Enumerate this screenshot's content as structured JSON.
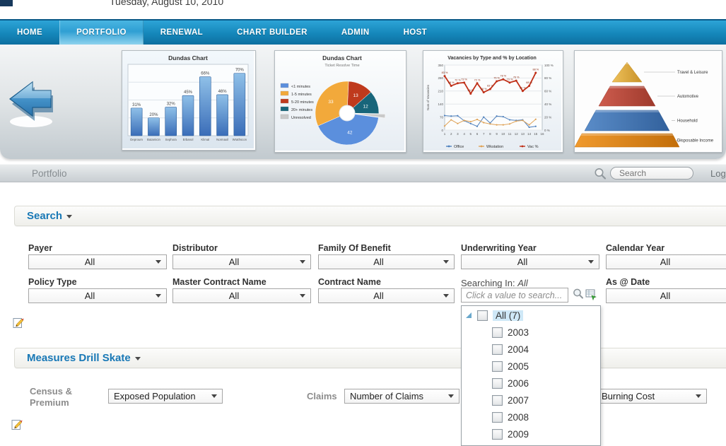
{
  "window": {
    "date": "Tuesday, August 10, 2010",
    "logout": "Log"
  },
  "nav": {
    "items": [
      "HOME",
      "PORTFOLIO",
      "RENEWAL",
      "CHART BUILDER",
      "ADMIN",
      "HOST"
    ],
    "active": "PORTFOLIO"
  },
  "breadcrumb": {
    "title": "Portfolio"
  },
  "toolbar_search": {
    "placeholder": "Search"
  },
  "search_section": {
    "title": "Search"
  },
  "filters": {
    "row1": [
      {
        "label": "Payer",
        "value": "All"
      },
      {
        "label": "Distributor",
        "value": "All"
      },
      {
        "label": "Family Of Benefit",
        "value": "All"
      },
      {
        "label": "Underwriting Year",
        "value": "All"
      },
      {
        "label": "Calendar Year",
        "value": "All"
      }
    ],
    "row2": [
      {
        "label": "Policy Type",
        "value": "All"
      },
      {
        "label": "Master Contract Name",
        "value": "All"
      },
      {
        "label": "Contract Name",
        "value": "All"
      }
    ],
    "as_at": {
      "label": "As @ Date",
      "value": "All"
    },
    "searching_in": {
      "label": "Searching In:",
      "value": "All",
      "placeholder": "Click a value to search..."
    }
  },
  "year_tree": {
    "root_label": "All (7)",
    "children": [
      "2003",
      "2004",
      "2005",
      "2006",
      "2007",
      "2008",
      "2009"
    ]
  },
  "measures_section": {
    "title": "Measures Drill Skate",
    "census_label_line1": "Census &",
    "census_label_line2": "Premium",
    "census_value": "Exposed Population",
    "claims_label": "Claims",
    "claims_value": "Number of Claims",
    "burning_value": "Burning Cost"
  },
  "colors": {
    "nav_blue": "#1587ba",
    "accent_blue": "#1878b6",
    "arrow_blue": "#3a8fc8"
  },
  "chart_data": [
    {
      "type": "bar",
      "title": "Dundas Chart",
      "categories": [
        "Deproum",
        "Butamicin",
        "Sephora",
        "Erbanol",
        "Klimal",
        "Normaxil",
        "Wrathscon"
      ],
      "values": [
        31,
        20,
        32,
        45,
        66,
        46,
        70
      ],
      "value_suffix": "%",
      "ylim": [
        0,
        80
      ],
      "bar_color_top": "#8fc0e8",
      "bar_color_bottom": "#3a6db8"
    },
    {
      "type": "pie",
      "title": "Dundas Chart",
      "subtitle": "Ticket Resolve Time",
      "legend": [
        "<1 minutes",
        "1-5 minutes",
        "5-20 minutes",
        "20+ minutes",
        "Unresolved"
      ],
      "values": [
        42,
        33,
        13,
        12,
        2
      ],
      "colors": [
        "#5b8fdd",
        "#f2a93b",
        "#bf3a1d",
        "#18657a",
        "#c9c9c9"
      ],
      "exploded_index": 4,
      "legend_position": "left",
      "donut_hole": true
    },
    {
      "type": "line",
      "title": "Vacancies by Type and % by Location",
      "ylabel": "Num of Vacancies",
      "ylim": [
        0,
        350
      ],
      "y2lim_percent": [
        0,
        100
      ],
      "x": [
        1,
        2,
        3,
        4,
        5,
        6,
        7,
        8,
        9,
        10,
        11,
        12,
        13,
        14,
        15
      ],
      "xlim": [
        1,
        16
      ],
      "series": [
        {
          "name": "Office",
          "axis": "left",
          "color": "#4f81bd",
          "values": [
            78,
            75,
            77,
            50,
            35,
            20,
            70,
            38,
            75,
            72,
            55,
            52,
            55,
            15,
            20
          ]
        },
        {
          "name": "Wkstation",
          "axis": "left",
          "color": "#dfa358",
          "values": [
            22,
            55,
            35,
            52,
            45,
            57,
            40,
            33,
            28,
            28,
            33,
            48,
            52,
            28,
            58
          ]
        },
        {
          "name": "Vac %",
          "axis": "right",
          "color": "#c03018",
          "label_suffix": " %",
          "values": [
            83,
            68,
            72,
            73,
            56,
            72,
            58,
            63,
            75,
            78,
            73,
            76,
            60,
            68,
            88
          ]
        }
      ],
      "legend_position": "bottom"
    },
    {
      "type": "pyramid",
      "levels": [
        {
          "label": "Travel & Leisure",
          "color": "#eec15a",
          "color2": "#c8922a"
        },
        {
          "label": "Automotive",
          "color": "#cd5c4e",
          "color2": "#9e3a2c"
        },
        {
          "label": "Household",
          "color": "#5a8cc8",
          "color2": "#32619c"
        },
        {
          "label": "Disposable Income",
          "color": "#f09a2e",
          "color2": "#c26e0a"
        }
      ]
    }
  ]
}
